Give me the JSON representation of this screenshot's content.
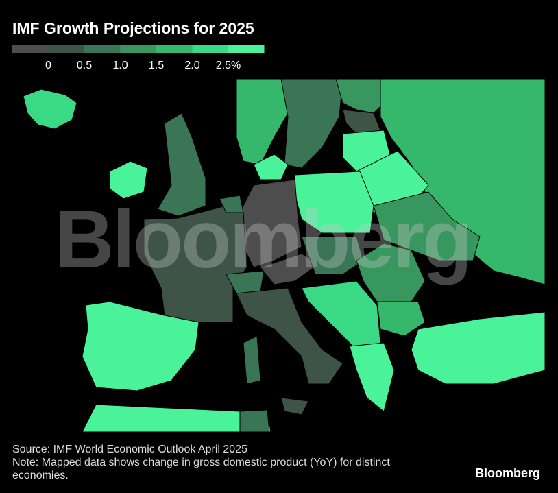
{
  "title": "IMF Growth Projections for 2025",
  "legend": {
    "colors": [
      "#4d4d4d",
      "#3d5447",
      "#3a7656",
      "#38965f",
      "#36b86c",
      "#3ad985",
      "#4af39a"
    ],
    "labels": [
      "0",
      "0.5",
      "1.0",
      "1.5",
      "2.0",
      "2.5%"
    ]
  },
  "watermark": "Bloomberg",
  "source": "Source: IMF World Economic Outlook April 2025",
  "note": "Note: Mapped data shows change in gross domestic product (YoY) for distinct economies.",
  "logo": "Bloomberg"
}
